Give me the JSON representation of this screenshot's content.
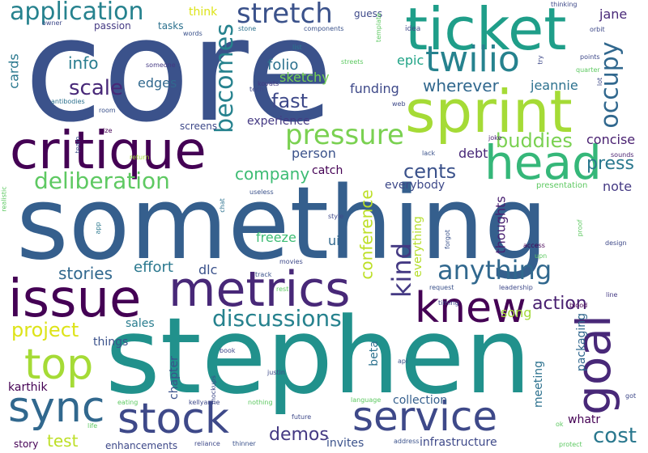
{
  "words": [
    {
      "text": "core",
      "size": 176,
      "color": "#3b528b",
      "rotate": false
    },
    {
      "text": "something",
      "size": 124,
      "color": "#355f8d",
      "rotate": false
    },
    {
      "text": "stephen",
      "size": 130,
      "color": "#21918c",
      "rotate": false
    },
    {
      "text": "ticket",
      "size": 72,
      "color": "#1f9e89",
      "rotate": false
    },
    {
      "text": "sprint",
      "size": 72,
      "color": "#a5db36",
      "rotate": false
    },
    {
      "text": "critique",
      "size": 64,
      "color": "#440154",
      "rotate": false
    },
    {
      "text": "issue",
      "size": 64,
      "color": "#440154",
      "rotate": false
    },
    {
      "text": "metrics",
      "size": 60,
      "color": "#482878",
      "rotate": false
    },
    {
      "text": "head",
      "size": 58,
      "color": "#35b779",
      "rotate": false
    },
    {
      "text": "knew",
      "size": 52,
      "color": "#440154",
      "rotate": false
    },
    {
      "text": "goal",
      "size": 58,
      "color": "#482878",
      "rotate": true
    },
    {
      "text": "top",
      "size": 52,
      "color": "#a5db36",
      "rotate": false
    },
    {
      "text": "sync",
      "size": 52,
      "color": "#31688e",
      "rotate": false
    },
    {
      "text": "stock",
      "size": 52,
      "color": "#3e4989",
      "rotate": false
    },
    {
      "text": "service",
      "size": 50,
      "color": "#3e4989",
      "rotate": false
    },
    {
      "text": "twilio",
      "size": 44,
      "color": "#26828e",
      "rotate": false
    },
    {
      "text": "stretch",
      "size": 34,
      "color": "#3b528b",
      "rotate": false
    },
    {
      "text": "application",
      "size": 30,
      "color": "#26828e",
      "rotate": false
    },
    {
      "text": "pressure",
      "size": 34,
      "color": "#7ad151",
      "rotate": false
    },
    {
      "text": "anything",
      "size": 32,
      "color": "#31688e",
      "rotate": false
    },
    {
      "text": "discussions",
      "size": 28,
      "color": "#26828e",
      "rotate": false
    },
    {
      "text": "occupy",
      "size": 30,
      "color": "#31688e",
      "rotate": true
    },
    {
      "text": "kind",
      "size": 32,
      "color": "#443983",
      "rotate": true
    },
    {
      "text": "becomes",
      "size": 30,
      "color": "#26828e",
      "rotate": true
    },
    {
      "text": "deliberation",
      "size": 28,
      "color": "#5ec962",
      "rotate": false
    },
    {
      "text": "scale",
      "size": 26,
      "color": "#482878",
      "rotate": false
    },
    {
      "text": "fast",
      "size": 24,
      "color": "#3e4989",
      "rotate": false
    },
    {
      "text": "cents",
      "size": 24,
      "color": "#3b528b",
      "rotate": false
    },
    {
      "text": "buddies",
      "size": 24,
      "color": "#7ad151",
      "rotate": false
    },
    {
      "text": "press",
      "size": 22,
      "color": "#2a788e",
      "rotate": false
    },
    {
      "text": "project",
      "size": 24,
      "color": "#dde318",
      "rotate": false
    },
    {
      "text": "action",
      "size": 22,
      "color": "#481f70",
      "rotate": false
    },
    {
      "text": "cost",
      "size": 26,
      "color": "#2a788e",
      "rotate": false
    },
    {
      "text": "demos",
      "size": 22,
      "color": "#443983",
      "rotate": false
    },
    {
      "text": "wherever",
      "size": 20,
      "color": "#31688e",
      "rotate": false
    },
    {
      "text": "info",
      "size": 20,
      "color": "#287c8e",
      "rotate": false
    },
    {
      "text": "company",
      "size": 20,
      "color": "#3dbc74",
      "rotate": false
    },
    {
      "text": "conference",
      "size": 20,
      "color": "#bddf26",
      "rotate": true
    },
    {
      "text": "stories",
      "size": 20,
      "color": "#31688e",
      "rotate": false
    },
    {
      "text": "effort",
      "size": 18,
      "color": "#2a788e",
      "rotate": false
    },
    {
      "text": "test",
      "size": 20,
      "color": "#bddf26",
      "rotate": false
    },
    {
      "text": "folio",
      "size": 18,
      "color": "#2c718e",
      "rotate": false
    },
    {
      "text": "sketchy",
      "size": 16,
      "color": "#75d054",
      "rotate": false
    },
    {
      "text": "funding",
      "size": 16,
      "color": "#3e4989",
      "rotate": false
    },
    {
      "text": "jeannie",
      "size": 16,
      "color": "#2c718e",
      "rotate": false
    },
    {
      "text": "jane",
      "size": 16,
      "color": "#482878",
      "rotate": false
    },
    {
      "text": "epic",
      "size": 16,
      "color": "#20a386",
      "rotate": false
    },
    {
      "text": "cards",
      "size": 16,
      "color": "#2a788e",
      "rotate": true
    },
    {
      "text": "edges",
      "size": 16,
      "color": "#31688e",
      "rotate": false
    },
    {
      "text": "experience",
      "size": 14,
      "color": "#443983",
      "rotate": false
    },
    {
      "text": "person",
      "size": 16,
      "color": "#3b528b",
      "rotate": false
    },
    {
      "text": "debt",
      "size": 16,
      "color": "#482878",
      "rotate": false
    },
    {
      "text": "concise",
      "size": 16,
      "color": "#481f70",
      "rotate": false
    },
    {
      "text": "catch",
      "size": 14,
      "color": "#440154",
      "rotate": false
    },
    {
      "text": "everybody",
      "size": 14,
      "color": "#3e4989",
      "rotate": false
    },
    {
      "text": "note",
      "size": 16,
      "color": "#443983",
      "rotate": false
    },
    {
      "text": "thoughts",
      "size": 16,
      "color": "#481f70",
      "rotate": true
    },
    {
      "text": "freeze",
      "size": 16,
      "color": "#3dbc74",
      "rotate": false
    },
    {
      "text": "ui",
      "size": 16,
      "color": "#31688e",
      "rotate": false
    },
    {
      "text": "everything",
      "size": 14,
      "color": "#b5de2b",
      "rotate": true
    },
    {
      "text": "dlc",
      "size": 16,
      "color": "#3b528b",
      "rotate": false
    },
    {
      "text": "song",
      "size": 16,
      "color": "#a2da37",
      "rotate": false
    },
    {
      "text": "packaging",
      "size": 14,
      "color": "#31688e",
      "rotate": true
    },
    {
      "text": "sales",
      "size": 14,
      "color": "#287c8e",
      "rotate": false
    },
    {
      "text": "things",
      "size": 14,
      "color": "#3b528b",
      "rotate": false
    },
    {
      "text": "beta",
      "size": 14,
      "color": "#2c718e",
      "rotate": true
    },
    {
      "text": "chapter",
      "size": 14,
      "color": "#3b528b",
      "rotate": true
    },
    {
      "text": "meeting",
      "size": 14,
      "color": "#2c718e",
      "rotate": true
    },
    {
      "text": "karthik",
      "size": 14,
      "color": "#440154",
      "rotate": false
    },
    {
      "text": "collection",
      "size": 14,
      "color": "#355f8d",
      "rotate": false
    },
    {
      "text": "whatr",
      "size": 14,
      "color": "#440154",
      "rotate": false
    },
    {
      "text": "invites",
      "size": 14,
      "color": "#3b528b",
      "rotate": false
    },
    {
      "text": "infrastructure",
      "size": 14,
      "color": "#3e4989",
      "rotate": false
    },
    {
      "text": "enhancements",
      "size": 12,
      "color": "#3e4989",
      "rotate": false
    },
    {
      "text": "story",
      "size": 12,
      "color": "#440154",
      "rotate": false
    },
    {
      "text": "think",
      "size": 14,
      "color": "#dde318",
      "rotate": false
    },
    {
      "text": "guess",
      "size": 12,
      "color": "#3e4989",
      "rotate": false
    },
    {
      "text": "passion",
      "size": 12,
      "color": "#443983",
      "rotate": false
    },
    {
      "text": "tasks",
      "size": 12,
      "color": "#2c718e",
      "rotate": false
    },
    {
      "text": "idea",
      "size": 9,
      "color": "#3e4989",
      "rotate": false
    },
    {
      "text": "components",
      "size": 8,
      "color": "#3b528b",
      "rotate": false
    },
    {
      "text": "stone",
      "size": 8,
      "color": "#2c718e",
      "rotate": false
    },
    {
      "text": "template",
      "size": 8,
      "color": "#5ec962",
      "rotate": true
    },
    {
      "text": "list",
      "size": 8,
      "color": "#2a788e",
      "rotate": false
    },
    {
      "text": "words",
      "size": 8,
      "color": "#3b528b",
      "rotate": false
    },
    {
      "text": "owner",
      "size": 8,
      "color": "#3e4989",
      "rotate": false
    },
    {
      "text": "thinking",
      "size": 8,
      "color": "#3e4989",
      "rotate": false
    },
    {
      "text": "orbit",
      "size": 8,
      "color": "#3e4989",
      "rotate": false
    },
    {
      "text": "streets",
      "size": 8,
      "color": "#5ec962",
      "rotate": false
    },
    {
      "text": "points",
      "size": 8,
      "color": "#3e4989",
      "rotate": false
    },
    {
      "text": "quarter",
      "size": 8,
      "color": "#5ec962",
      "rotate": false
    },
    {
      "text": "lot",
      "size": 8,
      "color": "#3e4989",
      "rotate": true
    },
    {
      "text": "try",
      "size": 8,
      "color": "#3e4989",
      "rotate": true
    },
    {
      "text": "someone",
      "size": 8,
      "color": "#443983",
      "rotate": false
    },
    {
      "text": "kovats",
      "size": 8,
      "color": "#443983",
      "rotate": false
    },
    {
      "text": "tech",
      "size": 8,
      "color": "#3e4989",
      "rotate": false
    },
    {
      "text": "web",
      "size": 8,
      "color": "#3e4989",
      "rotate": false
    },
    {
      "text": "antibodies",
      "size": 8,
      "color": "#2c718e",
      "rotate": false
    },
    {
      "text": "room",
      "size": 8,
      "color": "#3b528b",
      "rotate": false
    },
    {
      "text": "size",
      "size": 8,
      "color": "#440154",
      "rotate": false
    },
    {
      "text": "team",
      "size": 8,
      "color": "#3b528b",
      "rotate": true
    },
    {
      "text": "screens",
      "size": 12,
      "color": "#3e4989",
      "rotate": false
    },
    {
      "text": "return",
      "size": 8,
      "color": "#a5db36",
      "rotate": false
    },
    {
      "text": "joke",
      "size": 8,
      "color": "#481f70",
      "rotate": false
    },
    {
      "text": "lack",
      "size": 8,
      "color": "#3b528b",
      "rotate": false
    },
    {
      "text": "sounds",
      "size": 8,
      "color": "#481f70",
      "rotate": false
    },
    {
      "text": "useless",
      "size": 8,
      "color": "#3b528b",
      "rotate": false
    },
    {
      "text": "presentation",
      "size": 10,
      "color": "#5ec962",
      "rotate": false
    },
    {
      "text": "realistic",
      "size": 8,
      "color": "#5ec962",
      "rotate": true
    },
    {
      "text": "chat",
      "size": 8,
      "color": "#2c718e",
      "rotate": true
    },
    {
      "text": "app",
      "size": 8,
      "color": "#2a788e",
      "rotate": true
    },
    {
      "text": "style",
      "size": 8,
      "color": "#3e4989",
      "rotate": false
    },
    {
      "text": "forgot",
      "size": 8,
      "color": "#3b528b",
      "rotate": true
    },
    {
      "text": "proof",
      "size": 8,
      "color": "#5ec962",
      "rotate": true
    },
    {
      "text": "access",
      "size": 8,
      "color": "#440154",
      "rotate": false
    },
    {
      "text": "upn",
      "size": 8,
      "color": "#5ec962",
      "rotate": false
    },
    {
      "text": "design",
      "size": 8,
      "color": "#3e4989",
      "rotate": false
    },
    {
      "text": "movies",
      "size": 8,
      "color": "#3e4989",
      "rotate": false
    },
    {
      "text": "track",
      "size": 8,
      "color": "#3b528b",
      "rotate": false
    },
    {
      "text": "rest",
      "size": 8,
      "color": "#5ec962",
      "rotate": false
    },
    {
      "text": "request",
      "size": 8,
      "color": "#3b528b",
      "rotate": false
    },
    {
      "text": "leadership",
      "size": 8,
      "color": "#3e4989",
      "rotate": false
    },
    {
      "text": "line",
      "size": 8,
      "color": "#443983",
      "rotate": false
    },
    {
      "text": "timing",
      "size": 8,
      "color": "#3e4989",
      "rotate": false
    },
    {
      "text": "blood",
      "size": 8,
      "color": "#440154",
      "rotate": false
    },
    {
      "text": "book",
      "size": 8,
      "color": "#3e4989",
      "rotate": false
    },
    {
      "text": "justin",
      "size": 8,
      "color": "#3e4989",
      "rotate": false
    },
    {
      "text": "api",
      "size": 8,
      "color": "#3b528b",
      "rotate": false
    },
    {
      "text": "mockups",
      "size": 8,
      "color": "#3e4989",
      "rotate": true
    },
    {
      "text": "eating",
      "size": 8,
      "color": "#5ec962",
      "rotate": false
    },
    {
      "text": "kellyanne",
      "size": 8,
      "color": "#3e4989",
      "rotate": false
    },
    {
      "text": "nothing",
      "size": 8,
      "color": "#5ec962",
      "rotate": false
    },
    {
      "text": "language",
      "size": 8,
      "color": "#5ec962",
      "rotate": false
    },
    {
      "text": "got",
      "size": 8,
      "color": "#3e4989",
      "rotate": false
    },
    {
      "text": "future",
      "size": 8,
      "color": "#3e4989",
      "rotate": false
    },
    {
      "text": "life",
      "size": 8,
      "color": "#5ec962",
      "rotate": false
    },
    {
      "text": "reliance",
      "size": 8,
      "color": "#3e4989",
      "rotate": false
    },
    {
      "text": "thinner",
      "size": 8,
      "color": "#3b528b",
      "rotate": false
    },
    {
      "text": "address",
      "size": 8,
      "color": "#3b528b",
      "rotate": false
    },
    {
      "text": "protect",
      "size": 8,
      "color": "#5ec962",
      "rotate": false
    },
    {
      "text": "ok",
      "size": 8,
      "color": "#5ec962",
      "rotate": false
    }
  ]
}
